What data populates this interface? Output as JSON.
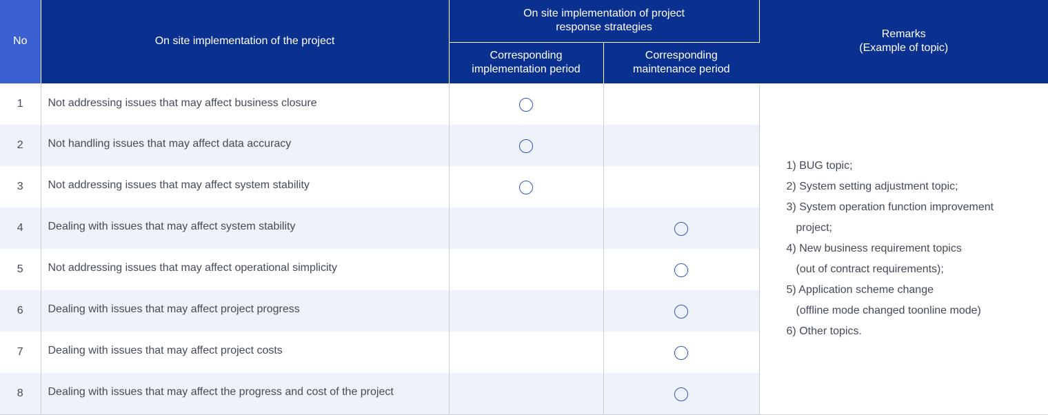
{
  "header": {
    "no": "No",
    "project": "On site implementation of the project",
    "strategies_line1": "On site implementation of project",
    "strategies_line2": "response strategies",
    "impl_line1": "Corresponding",
    "impl_line2": "implementation period",
    "maint_line1": "Corresponding",
    "maint_line2": "maintenance period",
    "remarks_line1": "Remarks",
    "remarks_line2": "(Example of topic)"
  },
  "rows": [
    {
      "no": "1",
      "desc": "Not addressing issues that may affect business closure",
      "implementation": true,
      "maintenance": false
    },
    {
      "no": "2",
      "desc": "Not handling issues that may affect data accuracy",
      "implementation": true,
      "maintenance": false
    },
    {
      "no": "3",
      "desc": "Not addressing issues that may affect system stability",
      "implementation": true,
      "maintenance": false
    },
    {
      "no": "4",
      "desc": "Dealing with issues that may affect system stability",
      "implementation": false,
      "maintenance": true
    },
    {
      "no": "5",
      "desc": "Not addressing issues that may affect operational simplicity",
      "implementation": false,
      "maintenance": true
    },
    {
      "no": "6",
      "desc": "Dealing with issues that may affect project progress",
      "implementation": false,
      "maintenance": true
    },
    {
      "no": "7",
      "desc": "Dealing with issues that may affect project costs",
      "implementation": false,
      "maintenance": true
    },
    {
      "no": "8",
      "desc": "Dealing with issues that may affect the progress and cost of the project",
      "implementation": false,
      "maintenance": true
    }
  ],
  "remarks": [
    "1) BUG topic;",
    "2) System setting adjustment topic;",
    "3) System operation function improvement",
    "project;",
    "4) New business requirement topics",
    "(out of contract requirements);",
    "5) Application scheme change",
    "(offline mode changed toonline mode)",
    "6) Other topics."
  ],
  "colors": {
    "header_bg": "#0b3190",
    "no_header_bg": "#3a5fd0",
    "alt_row_bg": "#edf2fb",
    "circle": "#2c55c2"
  },
  "icons": {
    "mark": "circle-mark-icon"
  }
}
